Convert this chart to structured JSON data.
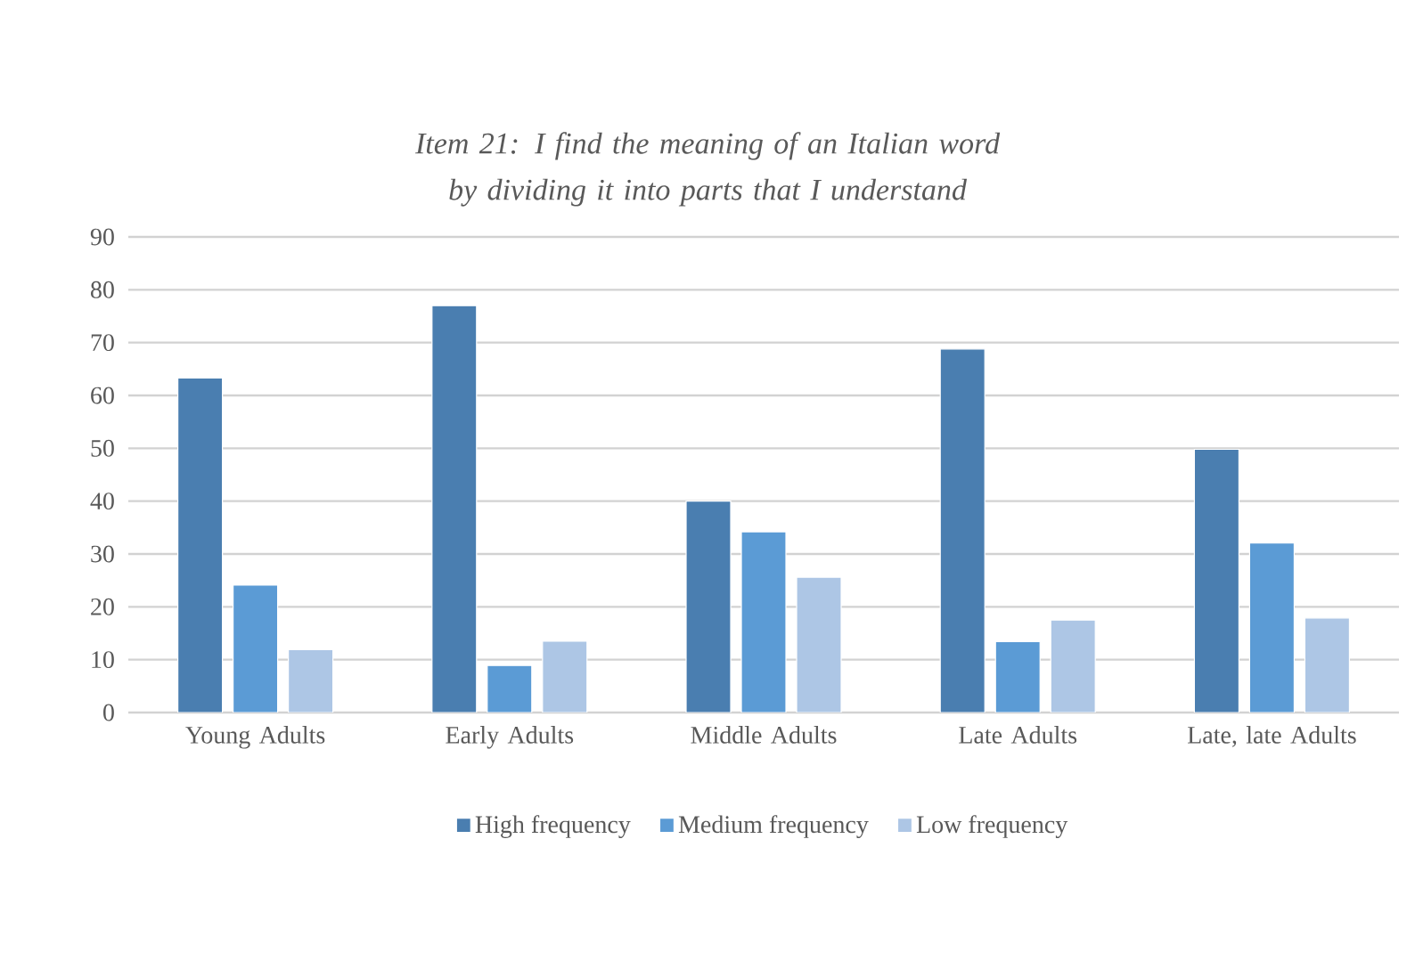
{
  "chart_data": {
    "type": "bar",
    "title": "Item 21: I find the meaning of an Italian word by dividing it into parts that I understand",
    "categories": [
      "Young Adults",
      "Early Adults",
      "Middle Adults",
      "Late Adults",
      "Late, late Adults"
    ],
    "series": [
      {
        "name": "High frequency",
        "color": "#4a7eb0",
        "values": [
          63.3,
          77,
          40,
          68.8,
          49.8
        ]
      },
      {
        "name": "Medium frequency",
        "color": "#5b9bd5",
        "values": [
          24.1,
          8.9,
          34.2,
          13.4,
          32.1
        ]
      },
      {
        "name": "Low frequency",
        "color": "#adc6e5",
        "values": [
          11.9,
          13.5,
          25.6,
          17.5,
          17.9
        ]
      }
    ],
    "ylim": [
      0,
      90
    ],
    "yticks": [
      0,
      10,
      20,
      30,
      40,
      50,
      60,
      70,
      80,
      90
    ],
    "grid": "y",
    "legend": "bottom"
  }
}
